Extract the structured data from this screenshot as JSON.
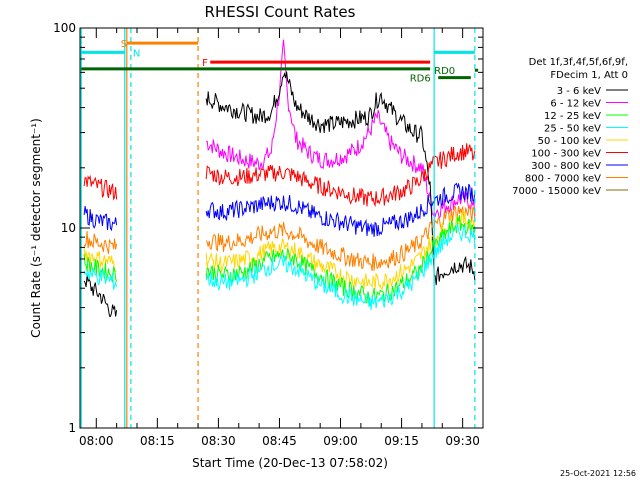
{
  "chart_data": {
    "type": "line",
    "title": "RHESSI Count Rates",
    "xlabel": "Start Time (20-Dec-13 07:58:02)",
    "ylabel": "Count Rate (s⁻¹ detector segment⁻¹)",
    "y_scale": "log",
    "ylim": [
      1,
      100
    ],
    "y_ticks": [
      {
        "value": 1,
        "label": "1"
      },
      {
        "value": 10,
        "label": "10"
      },
      {
        "value": 100,
        "label": "100"
      }
    ],
    "xlim": [
      "07:56",
      "09:35"
    ],
    "x_ticks": [
      {
        "time": "08:00",
        "label": "08:00"
      },
      {
        "time": "08:15",
        "label": "08:15"
      },
      {
        "time": "08:30",
        "label": "08:30"
      },
      {
        "time": "08:45",
        "label": "08:45"
      },
      {
        "time": "09:00",
        "label": "09:00"
      },
      {
        "time": "09:15",
        "label": "09:15"
      },
      {
        "time": "09:30",
        "label": "09:30"
      }
    ],
    "legend_header": [
      "Det 1f,3f,4f,5f,6f,9f,",
      "FDecim 1, Att 0"
    ],
    "legend_position": "right",
    "series": [
      {
        "name": "3 - 6 keV",
        "color": "#000000",
        "points": [
          [
            "07:57",
            5.6
          ],
          [
            "07:59",
            5.0
          ],
          [
            "08:01",
            4.6
          ],
          [
            "08:03",
            4.0
          ],
          [
            "08:05",
            3.6
          ],
          [
            "08:27",
            45
          ],
          [
            "08:31",
            41
          ],
          [
            "08:36",
            38
          ],
          [
            "08:40",
            36
          ],
          [
            "08:43",
            38
          ],
          [
            "08:45",
            50
          ],
          [
            "08:46",
            62
          ],
          [
            "08:47",
            55
          ],
          [
            "08:49",
            41
          ],
          [
            "08:52",
            36
          ],
          [
            "08:55",
            33
          ],
          [
            "08:58",
            33
          ],
          [
            "09:01",
            34
          ],
          [
            "09:04",
            35
          ],
          [
            "09:07",
            36
          ],
          [
            "09:09",
            44
          ],
          [
            "09:10",
            46
          ],
          [
            "09:12",
            40
          ],
          [
            "09:15",
            34
          ],
          [
            "09:18",
            30
          ],
          [
            "09:20",
            29
          ],
          [
            "09:22",
            16
          ],
          [
            "09:23",
            5.6
          ],
          [
            "09:26",
            6.2
          ],
          [
            "09:29",
            6.6
          ],
          [
            "09:32",
            6.4
          ],
          [
            "09:33",
            6.0
          ]
        ]
      },
      {
        "name": "6 - 12 keV",
        "color": "#ff00ff",
        "points": [
          [
            "08:27",
            27
          ],
          [
            "08:31",
            24
          ],
          [
            "08:36",
            22
          ],
          [
            "08:40",
            21
          ],
          [
            "08:43",
            24
          ],
          [
            "08:45",
            48
          ],
          [
            "08:46",
            80
          ],
          [
            "08:47",
            45
          ],
          [
            "08:49",
            28
          ],
          [
            "08:52",
            24
          ],
          [
            "08:55",
            22
          ],
          [
            "08:58",
            22
          ],
          [
            "09:01",
            23
          ],
          [
            "09:04",
            25
          ],
          [
            "09:07",
            30
          ],
          [
            "09:09",
            36
          ],
          [
            "09:10",
            33
          ],
          [
            "09:12",
            27
          ],
          [
            "09:15",
            23
          ],
          [
            "09:18",
            21
          ],
          [
            "09:20",
            20
          ],
          [
            "09:22",
            14
          ],
          [
            "09:23",
            12
          ],
          [
            "09:26",
            13
          ],
          [
            "09:29",
            14
          ],
          [
            "09:32",
            13.5
          ],
          [
            "09:33",
            12
          ]
        ]
      },
      {
        "name": "12 - 25 keV",
        "color": "#00ff00",
        "points": [
          [
            "07:57",
            6.8
          ],
          [
            "07:59",
            6.4
          ],
          [
            "08:01",
            6.2
          ],
          [
            "08:03",
            6.0
          ],
          [
            "08:05",
            5.8
          ],
          [
            "08:27",
            6.2
          ],
          [
            "08:31",
            5.8
          ],
          [
            "08:36",
            6.0
          ],
          [
            "08:40",
            6.6
          ],
          [
            "08:43",
            7.1
          ],
          [
            "08:46",
            7.3
          ],
          [
            "08:49",
            7.0
          ],
          [
            "08:52",
            6.3
          ],
          [
            "08:55",
            5.8
          ],
          [
            "08:58",
            5.4
          ],
          [
            "09:01",
            5.0
          ],
          [
            "09:04",
            4.8
          ],
          [
            "09:07",
            4.5
          ],
          [
            "09:10",
            4.6
          ],
          [
            "09:13",
            4.9
          ],
          [
            "09:16",
            5.4
          ],
          [
            "09:19",
            6.0
          ],
          [
            "09:22",
            7.5
          ],
          [
            "09:23",
            8.0
          ],
          [
            "09:26",
            9.5
          ],
          [
            "09:29",
            10.5
          ],
          [
            "09:32",
            10.0
          ],
          [
            "09:33",
            9.5
          ]
        ]
      },
      {
        "name": "25 - 50 keV",
        "color": "#00ffff",
        "points": [
          [
            "07:57",
            6.2
          ],
          [
            "07:59",
            5.8
          ],
          [
            "08:01",
            5.7
          ],
          [
            "08:03",
            5.5
          ],
          [
            "08:05",
            5.3
          ],
          [
            "08:27",
            5.6
          ],
          [
            "08:31",
            5.3
          ],
          [
            "08:36",
            5.5
          ],
          [
            "08:40",
            6.0
          ],
          [
            "08:43",
            6.5
          ],
          [
            "08:46",
            6.6
          ],
          [
            "08:49",
            6.3
          ],
          [
            "08:52",
            5.7
          ],
          [
            "08:55",
            5.2
          ],
          [
            "08:58",
            4.9
          ],
          [
            "09:01",
            4.6
          ],
          [
            "09:04",
            4.4
          ],
          [
            "09:07",
            4.2
          ],
          [
            "09:10",
            4.3
          ],
          [
            "09:13",
            4.6
          ],
          [
            "09:16",
            5.0
          ],
          [
            "09:19",
            5.6
          ],
          [
            "09:22",
            7.0
          ],
          [
            "09:23",
            7.4
          ],
          [
            "09:26",
            8.8
          ],
          [
            "09:29",
            9.6
          ],
          [
            "09:32",
            9.3
          ],
          [
            "09:33",
            8.8
          ]
        ]
      },
      {
        "name": "50 - 100 keV",
        "color": "#ffd700",
        "points": [
          [
            "07:57",
            7.6
          ],
          [
            "07:59",
            7.2
          ],
          [
            "08:01",
            7.0
          ],
          [
            "08:03",
            6.8
          ],
          [
            "08:05",
            6.6
          ],
          [
            "08:27",
            7.0
          ],
          [
            "08:31",
            6.6
          ],
          [
            "08:36",
            6.9
          ],
          [
            "08:40",
            7.4
          ],
          [
            "08:43",
            7.9
          ],
          [
            "08:46",
            8.0
          ],
          [
            "08:49",
            7.7
          ],
          [
            "08:52",
            7.0
          ],
          [
            "08:55",
            6.5
          ],
          [
            "08:58",
            6.1
          ],
          [
            "09:01",
            5.7
          ],
          [
            "09:04",
            5.5
          ],
          [
            "09:07",
            5.3
          ],
          [
            "09:10",
            5.4
          ],
          [
            "09:13",
            5.7
          ],
          [
            "09:16",
            6.2
          ],
          [
            "09:19",
            6.9
          ],
          [
            "09:22",
            8.4
          ],
          [
            "09:23",
            8.8
          ],
          [
            "09:26",
            10.2
          ],
          [
            "09:29",
            11.2
          ],
          [
            "09:32",
            10.8
          ],
          [
            "09:33",
            10.4
          ]
        ]
      },
      {
        "name": "100 - 300 keV",
        "color": "#ff0000",
        "points": [
          [
            "07:57",
            17.5
          ],
          [
            "07:59",
            16.5
          ],
          [
            "08:01",
            16.0
          ],
          [
            "08:03",
            15.5
          ],
          [
            "08:05",
            15.0
          ],
          [
            "08:27",
            19
          ],
          [
            "08:31",
            18
          ],
          [
            "08:36",
            18
          ],
          [
            "08:40",
            18.5
          ],
          [
            "08:43",
            18.8
          ],
          [
            "08:46",
            19
          ],
          [
            "08:49",
            18.2
          ],
          [
            "08:52",
            17
          ],
          [
            "08:55",
            16.2
          ],
          [
            "08:58",
            15.5
          ],
          [
            "09:01",
            15.0
          ],
          [
            "09:04",
            14.3
          ],
          [
            "09:07",
            14.0
          ],
          [
            "09:10",
            14.2
          ],
          [
            "09:13",
            14.8
          ],
          [
            "09:16",
            15.6
          ],
          [
            "09:19",
            17
          ],
          [
            "09:22",
            20
          ],
          [
            "09:23",
            21
          ],
          [
            "09:26",
            22.5
          ],
          [
            "09:29",
            24
          ],
          [
            "09:32",
            24
          ],
          [
            "09:33",
            22
          ]
        ]
      },
      {
        "name": "300 - 800 keV",
        "color": "#0000ff",
        "points": [
          [
            "07:57",
            11.8
          ],
          [
            "07:59",
            11.2
          ],
          [
            "08:01",
            10.8
          ],
          [
            "08:03",
            10.6
          ],
          [
            "08:05",
            10.4
          ],
          [
            "08:27",
            12.5
          ],
          [
            "08:31",
            12.0
          ],
          [
            "08:36",
            12.5
          ],
          [
            "08:40",
            13.0
          ],
          [
            "08:43",
            13.4
          ],
          [
            "08:46",
            13.5
          ],
          [
            "08:49",
            13.0
          ],
          [
            "08:52",
            12.0
          ],
          [
            "08:55",
            11.4
          ],
          [
            "08:58",
            11.0
          ],
          [
            "09:01",
            10.6
          ],
          [
            "09:04",
            10.2
          ],
          [
            "09:07",
            9.9
          ],
          [
            "09:10",
            10.1
          ],
          [
            "09:13",
            10.5
          ],
          [
            "09:16",
            11.0
          ],
          [
            "09:19",
            11.8
          ],
          [
            "09:22",
            13.5
          ],
          [
            "09:23",
            13.8
          ],
          [
            "09:26",
            14.5
          ],
          [
            "09:29",
            15.2
          ],
          [
            "09:32",
            15.0
          ],
          [
            "09:33",
            14.4
          ]
        ]
      },
      {
        "name": "800 - 7000 keV",
        "color": "#ff8000",
        "points": [
          [
            "07:57",
            9.0
          ],
          [
            "07:59",
            8.6
          ],
          [
            "08:01",
            8.4
          ],
          [
            "08:03",
            8.2
          ],
          [
            "08:05",
            8.0
          ],
          [
            "08:27",
            8.8
          ],
          [
            "08:31",
            8.4
          ],
          [
            "08:36",
            8.7
          ],
          [
            "08:40",
            9.2
          ],
          [
            "08:43",
            9.6
          ],
          [
            "08:46",
            9.7
          ],
          [
            "08:49",
            9.3
          ],
          [
            "08:52",
            8.6
          ],
          [
            "08:55",
            8.0
          ],
          [
            "08:58",
            7.6
          ],
          [
            "09:01",
            7.2
          ],
          [
            "09:04",
            6.9
          ],
          [
            "09:07",
            6.7
          ],
          [
            "09:10",
            6.8
          ],
          [
            "09:13",
            7.1
          ],
          [
            "09:16",
            7.6
          ],
          [
            "09:19",
            8.3
          ],
          [
            "09:22",
            9.8
          ],
          [
            "09:23",
            10.2
          ],
          [
            "09:26",
            11.5
          ],
          [
            "09:29",
            12.2
          ],
          [
            "09:32",
            11.8
          ],
          [
            "09:33",
            11.4
          ]
        ]
      },
      {
        "name": "7000 - 15000 keV",
        "color": "#8b6914",
        "points": []
      }
    ],
    "vertical_lines": [
      {
        "time": "07:56.3",
        "color": "#00e5e5",
        "style": "solid"
      },
      {
        "time": "08:07",
        "color": "#00e5e5",
        "style": "solid"
      },
      {
        "time": "08:08.5",
        "color": "#00e5e5",
        "style": "dashed"
      },
      {
        "time": "08:07.5",
        "color": "#ff8000",
        "style": "solid"
      },
      {
        "time": "08:25",
        "color": "#ff8000",
        "style": "dashed"
      },
      {
        "time": "09:23",
        "color": "#00e5e5",
        "style": "solid"
      },
      {
        "time": "09:33",
        "color": "#00e5e5",
        "style": "dashed"
      }
    ],
    "interval_bars": [
      {
        "label": "S",
        "color": "#ff8000",
        "from": "08:07.5",
        "to": "08:25",
        "y": 84,
        "label_time": "08:06"
      },
      {
        "label": "N",
        "color": "#00e5e5",
        "from": "07:56.3",
        "to": "08:07",
        "y": 75.5,
        "label_time": "08:09"
      },
      {
        "label": "N",
        "color": "#00e5e5",
        "from": "09:23",
        "to": "09:33",
        "y": 75.5,
        "label_time": null
      },
      {
        "label": "F",
        "color": "#ff0000",
        "from": "08:28",
        "to": "09:22",
        "y": 67.5,
        "label_time": "08:26"
      },
      {
        "label": "RD0",
        "color": "#006400",
        "from": "09:33",
        "to": "09:33.8",
        "y": 61.5,
        "label_time": "09:23"
      },
      {
        "label": "",
        "color": "#006400",
        "from": "07:56.3",
        "to": "09:22",
        "y": 62.5,
        "label_time": null
      },
      {
        "label": "RD6",
        "color": "#006400",
        "from": "09:24",
        "to": "09:32",
        "y": 56.5,
        "label_time": "09:17"
      }
    ]
  },
  "footer": {
    "timestamp": "25-Oct-2021 12:56"
  }
}
